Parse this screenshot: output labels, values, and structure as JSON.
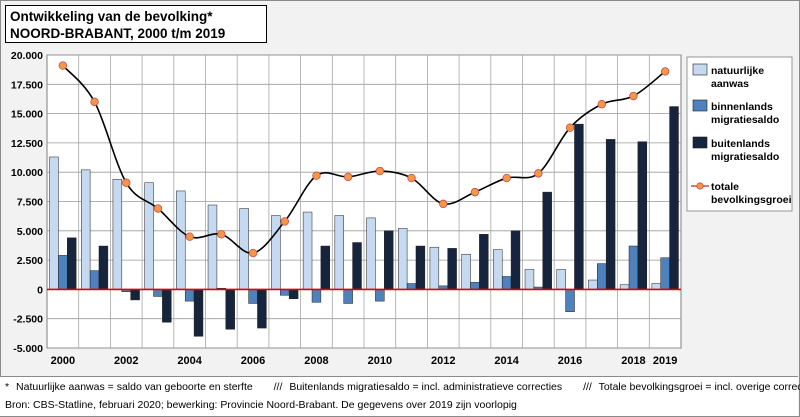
{
  "title_line1": "Ontwikkeling van de bevolking*",
  "title_line2": "NOORD-BRABANT, 2000 t/m 2019",
  "chart_data": {
    "type": "bar+line",
    "title": "Ontwikkeling van de bevolking* NOORD-BRABANT, 2000 t/m 2019",
    "years": [
      2000,
      2001,
      2002,
      2003,
      2004,
      2005,
      2006,
      2007,
      2008,
      2009,
      2010,
      2011,
      2012,
      2013,
      2014,
      2015,
      2016,
      2017,
      2018,
      2019
    ],
    "x_tick_labels": [
      "2000",
      "2002",
      "2004",
      "2006",
      "2008",
      "2010",
      "2012",
      "2014",
      "2016",
      "2018",
      "2019"
    ],
    "y_tick_labels": [
      "20.000",
      "17.500",
      "15.000",
      "12.500",
      "10.000",
      "7.500",
      "5.000",
      "2.500",
      "0",
      "-2.500",
      "-5.000"
    ],
    "ylim": [
      -5000,
      20000
    ],
    "series": [
      {
        "name": "natuurlijke aanwas",
        "label_lines": [
          "natuurlijke",
          "aanwas"
        ],
        "color": "#c5d9f1",
        "values": [
          11300,
          10200,
          9400,
          9100,
          8400,
          7200,
          6900,
          6300,
          6600,
          6300,
          6100,
          5200,
          3600,
          3000,
          3400,
          1700,
          1700,
          800,
          400,
          500
        ]
      },
      {
        "name": "binnenlands migratiesaldo",
        "label_lines": [
          "binnenlands",
          "migratiesaldo"
        ],
        "color": "#4f81bd",
        "values": [
          2900,
          1600,
          -200,
          -600,
          -1000,
          100,
          -1200,
          -500,
          -1100,
          -1200,
          -1000,
          500,
          300,
          600,
          1100,
          200,
          -1900,
          2200,
          3700,
          2700
        ]
      },
      {
        "name": "buitenlands migratiesaldo",
        "label_lines": [
          "buitenlands",
          "migratiesaldo"
        ],
        "color": "#17243d",
        "values": [
          4400,
          3700,
          -900,
          -2800,
          -4000,
          -3400,
          -3300,
          -800,
          3700,
          4000,
          5000,
          3700,
          3500,
          4700,
          5000,
          8300,
          14100,
          12800,
          12600,
          15600
        ]
      },
      {
        "name": "totale bevolkingsgroei",
        "label_lines": [
          "totale",
          "bevolkingsgroei"
        ],
        "color": "#f79646",
        "type": "line",
        "values": [
          19100,
          16000,
          9100,
          6900,
          4500,
          4700,
          3100,
          5800,
          9700,
          9600,
          10100,
          9500,
          7300,
          8300,
          9500,
          9900,
          13800,
          15800,
          16500,
          18600
        ]
      }
    ]
  },
  "notes": {
    "asterisk": "*",
    "note_a": "Natuurlijke aanwas = saldo van geboorte en sterfte",
    "sep1": "///",
    "note_b": "Buitenlands migratiesaldo = incl. administratieve correcties",
    "sep2": "///",
    "note_c": "Totale bevolkingsgroei = incl. overige correcties",
    "source": "Bron: CBS-Statline, februari 2020; bewerking: Provincie Noord-Brabant. De gegevens over 2019 zijn voorlopig"
  }
}
